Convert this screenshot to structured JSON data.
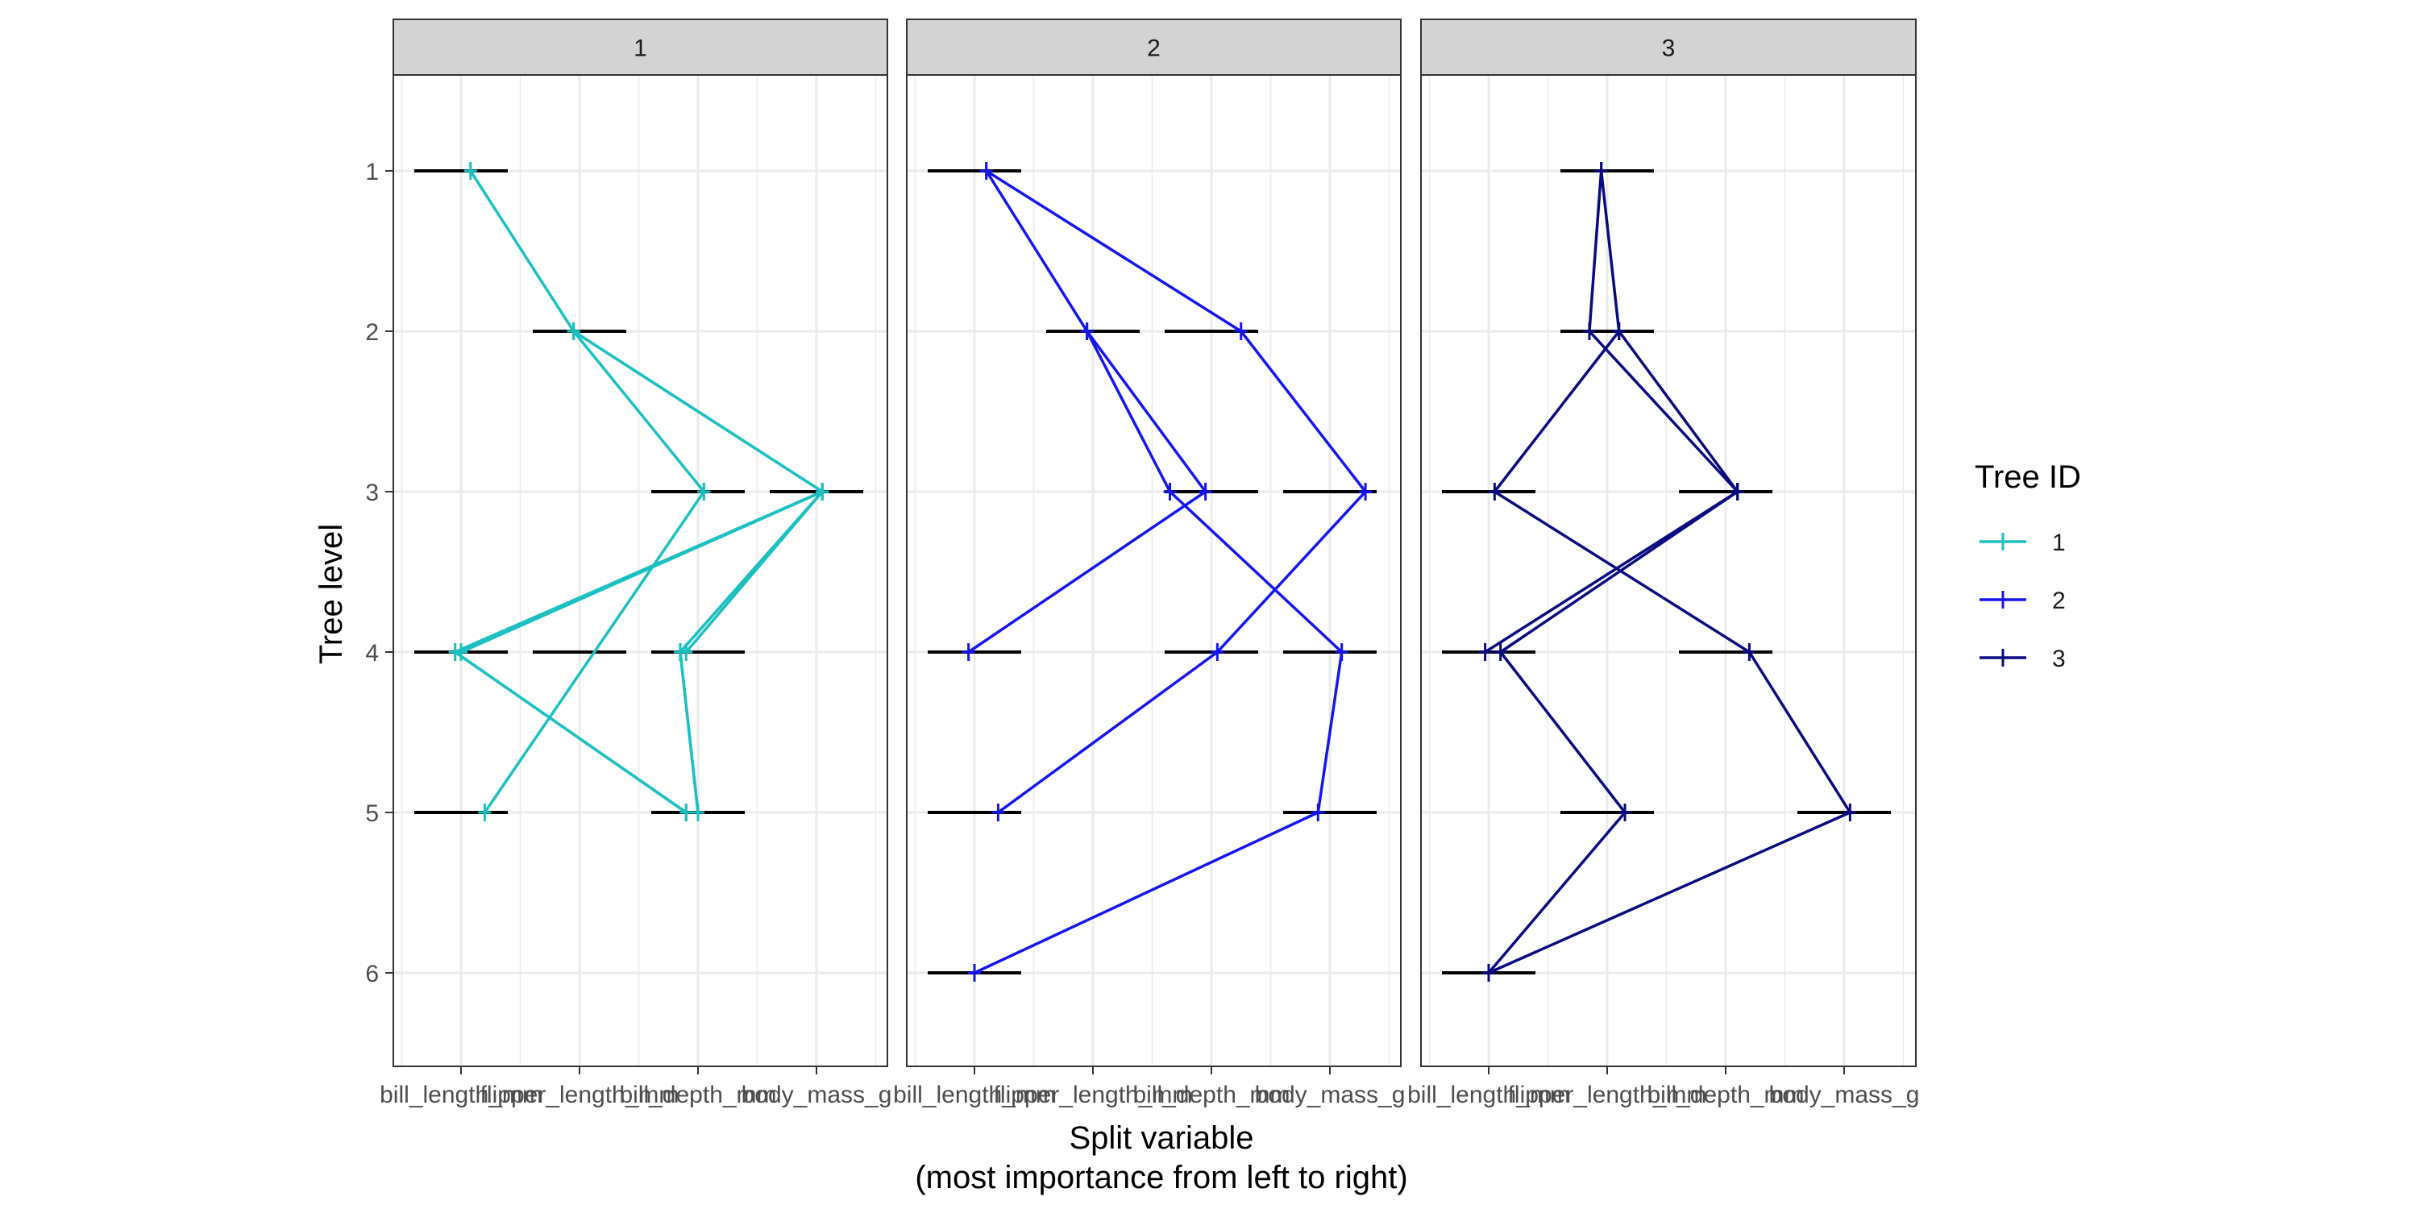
{
  "chart_data": {
    "type": "line",
    "facet_labels": [
      "1",
      "2",
      "3"
    ],
    "xlabel": "Split variable",
    "xlabel_sub": "(most importance from left to right)",
    "ylabel": "Tree level",
    "y_ticks": [
      "1",
      "2",
      "3",
      "4",
      "5",
      "6"
    ],
    "y_reversed": true,
    "ylim": [
      6.6,
      0.4
    ],
    "x_categories": [
      "bill_length_mm",
      "flipper_length_mm",
      "bill_depth_mm",
      "body_mass_g"
    ],
    "legend": {
      "title": "Tree ID",
      "position": "right",
      "entries": [
        "1",
        "2",
        "3"
      ]
    },
    "colors": {
      "1": "#1DC0C0",
      "2": "#1515F0",
      "3": "#0A0A80",
      "range_bar": "#000000",
      "strip": "#d3d3d3",
      "grid": "#ebebeb"
    },
    "panels": [
      {
        "facet": "1",
        "ranges": [
          {
            "level": 1,
            "x": 1.0
          },
          {
            "level": 2,
            "x": 2.0
          },
          {
            "level": 3,
            "x": 3.0
          },
          {
            "level": 3,
            "x": 4.0
          },
          {
            "level": 4,
            "x": 1.0
          },
          {
            "level": 4,
            "x": 2.0
          },
          {
            "level": 4,
            "x": 3.0
          },
          {
            "level": 5,
            "x": 1.0
          },
          {
            "level": 5,
            "x": 3.0
          }
        ],
        "paths": [
          [
            [
              1.08,
              1
            ],
            [
              1.95,
              2
            ],
            [
              3.05,
              3
            ]
          ],
          [
            [
              1.95,
              2
            ],
            [
              4.05,
              3
            ],
            [
              1.0,
              4
            ]
          ],
          [
            [
              1.95,
              2
            ],
            [
              4.05,
              3
            ],
            [
              1.0,
              4
            ]
          ],
          [
            [
              4.05,
              3
            ],
            [
              2.85,
              4
            ],
            [
              3.0,
              5
            ]
          ],
          [
            [
              4.05,
              3
            ],
            [
              2.85,
              4
            ],
            [
              3.0,
              5
            ]
          ],
          [
            [
              4.05,
              3
            ],
            [
              0.95,
              4
            ],
            [
              2.9,
              5
            ]
          ],
          [
            [
              4.05,
              3
            ],
            [
              0.95,
              4
            ],
            [
              2.9,
              5
            ]
          ],
          [
            [
              4.05,
              3
            ],
            [
              2.9,
              4
            ]
          ],
          [
            [
              3.05,
              3
            ],
            [
              1.2,
              5
            ]
          ]
        ]
      },
      {
        "facet": "2",
        "ranges": [
          {
            "level": 1,
            "x": 1.0
          },
          {
            "level": 2,
            "x": 2.0
          },
          {
            "level": 2,
            "x": 3.0
          },
          {
            "level": 3,
            "x": 3.0
          },
          {
            "level": 3,
            "x": 4.0
          },
          {
            "level": 4,
            "x": 1.0
          },
          {
            "level": 4,
            "x": 3.0
          },
          {
            "level": 4,
            "x": 4.0
          },
          {
            "level": 5,
            "x": 1.0
          },
          {
            "level": 5,
            "x": 4.0
          },
          {
            "level": 6,
            "x": 1.0
          }
        ],
        "paths": [
          [
            [
              1.1,
              1
            ],
            [
              3.25,
              2
            ],
            [
              4.3,
              3
            ],
            [
              3.05,
              4
            ],
            [
              1.2,
              5
            ]
          ],
          [
            [
              1.1,
              1
            ],
            [
              1.95,
              2
            ],
            [
              2.65,
              3
            ],
            [
              4.1,
              4
            ],
            [
              3.9,
              5
            ],
            [
              1.0,
              6
            ]
          ],
          [
            [
              1.95,
              2
            ],
            [
              2.95,
              3
            ],
            [
              0.95,
              4
            ]
          ]
        ]
      },
      {
        "facet": "3",
        "ranges": [
          {
            "level": 1,
            "x": 2.0
          },
          {
            "level": 2,
            "x": 2.0
          },
          {
            "level": 3,
            "x": 1.0
          },
          {
            "level": 3,
            "x": 3.0
          },
          {
            "level": 4,
            "x": 1.0
          },
          {
            "level": 4,
            "x": 3.0
          },
          {
            "level": 5,
            "x": 2.0
          },
          {
            "level": 5,
            "x": 4.0
          },
          {
            "level": 6,
            "x": 1.0
          }
        ],
        "paths": [
          [
            [
              1.95,
              1
            ],
            [
              1.85,
              2
            ],
            [
              3.1,
              3
            ]
          ],
          [
            [
              1.95,
              1
            ],
            [
              2.1,
              2
            ],
            [
              1.05,
              3
            ],
            [
              3.2,
              4
            ],
            [
              4.05,
              5
            ],
            [
              1.0,
              6
            ]
          ],
          [
            [
              2.1,
              2
            ],
            [
              3.1,
              3
            ],
            [
              0.97,
              4
            ]
          ],
          [
            [
              3.1,
              3
            ],
            [
              1.1,
              4
            ],
            [
              2.15,
              5
            ],
            [
              1.0,
              6
            ]
          ]
        ]
      }
    ]
  }
}
